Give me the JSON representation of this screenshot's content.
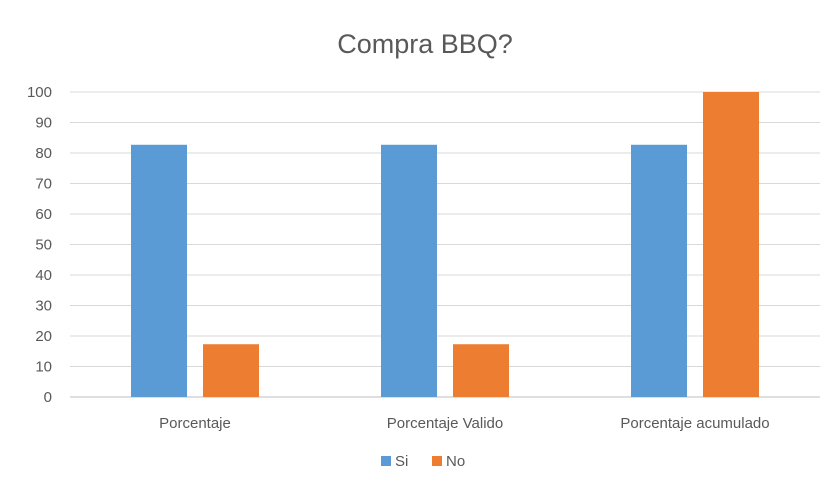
{
  "chart_data": {
    "type": "bar",
    "title": "Compra BBQ?",
    "xlabel": "",
    "ylabel": "",
    "categories": [
      "Porcentaje",
      "Porcentaje Valido",
      "Porcentaje acumulado"
    ],
    "series": [
      {
        "name": "Si",
        "values": [
          82.7,
          82.7,
          82.7
        ],
        "color": "#5B9BD5"
      },
      {
        "name": "No",
        "values": [
          17.3,
          17.3,
          100
        ],
        "color": "#ED7D31"
      }
    ],
    "ylim": [
      0,
      100
    ],
    "yticks": [
      0,
      10,
      20,
      30,
      40,
      50,
      60,
      70,
      80,
      90,
      100
    ],
    "grid": true,
    "legend_position": "bottom",
    "gridline_color": "#D9D9D9",
    "axis_color": "#BFBFBF"
  }
}
